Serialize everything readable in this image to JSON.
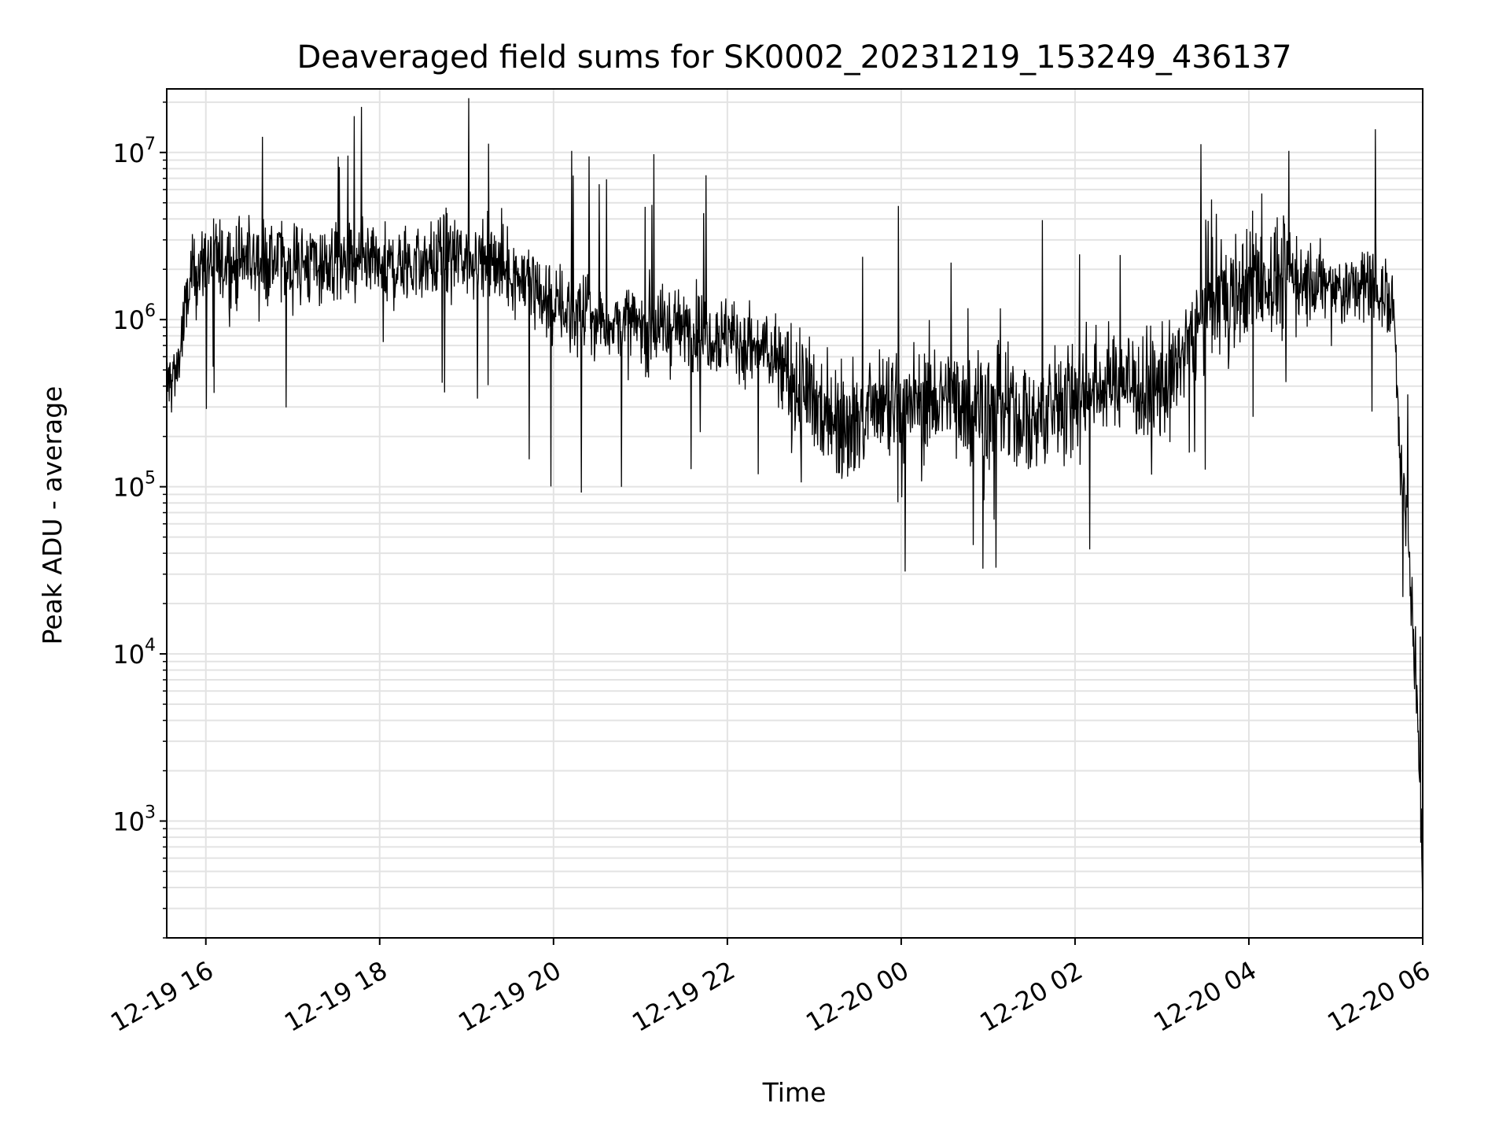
{
  "chart_data": {
    "type": "line",
    "title": "Deaveraged field sums for SK0002_20231219_153249_436137",
    "xlabel": "Time",
    "ylabel": "Peak ADU - average",
    "yscale": "log",
    "grid": true,
    "legend": "none",
    "line_color": "#000000",
    "grid_color": "#e3e3e3",
    "xlim": [
      "2023-12-19 15:33",
      "2023-12-20 06:00"
    ],
    "ylim": [
      200,
      24000000
    ],
    "x_ticks": [
      {
        "value": "2023-12-19 16:00",
        "label": "12-19 16"
      },
      {
        "value": "2023-12-19 18:00",
        "label": "12-19 18"
      },
      {
        "value": "2023-12-19 20:00",
        "label": "12-19 20"
      },
      {
        "value": "2023-12-19 22:00",
        "label": "12-19 22"
      },
      {
        "value": "2023-12-20 00:00",
        "label": "12-20 00"
      },
      {
        "value": "2023-12-20 02:00",
        "label": "12-20 02"
      },
      {
        "value": "2023-12-20 04:00",
        "label": "12-20 04"
      },
      {
        "value": "2023-12-20 06:00",
        "label": "12-20 06"
      }
    ],
    "y_ticks": [
      {
        "value": 1000,
        "base": "10",
        "exp": "3"
      },
      {
        "value": 10000,
        "base": "10",
        "exp": "4"
      },
      {
        "value": 100000,
        "base": "10",
        "exp": "5"
      },
      {
        "value": 1000000,
        "base": "10",
        "exp": "6"
      },
      {
        "value": 10000000,
        "base": "10",
        "exp": "7"
      }
    ],
    "series": [
      {
        "x": [
          "2023-12-19 15:33",
          "2023-12-19 15:40",
          "2023-12-19 15:50",
          "2023-12-19 16:00",
          "2023-12-19 16:30",
          "2023-12-19 17:00",
          "2023-12-19 17:30",
          "2023-12-19 18:00",
          "2023-12-19 18:30",
          "2023-12-19 19:00",
          "2023-12-19 19:30",
          "2023-12-19 20:00",
          "2023-12-19 20:30",
          "2023-12-19 21:00",
          "2023-12-19 21:30",
          "2023-12-19 22:00",
          "2023-12-19 22:30",
          "2023-12-19 23:00",
          "2023-12-19 23:30",
          "2023-12-20 00:00",
          "2023-12-20 00:30",
          "2023-12-20 01:00",
          "2023-12-20 01:30",
          "2023-12-20 02:00",
          "2023-12-20 02:30",
          "2023-12-20 03:00",
          "2023-12-20 03:30",
          "2023-12-20 04:00",
          "2023-12-20 04:30",
          "2023-12-20 05:00",
          "2023-12-20 05:30",
          "2023-12-20 05:40",
          "2023-12-20 05:45",
          "2023-12-20 05:50",
          "2023-12-20 05:55",
          "2023-12-20 06:00"
        ],
        "y": [
          400000,
          500000,
          1800000,
          2200000,
          2300000,
          2200000,
          2100000,
          2000000,
          2200000,
          2400000,
          2000000,
          1200000,
          1000000,
          900000,
          900000,
          800000,
          600000,
          300000,
          250000,
          300000,
          350000,
          300000,
          250000,
          350000,
          450000,
          350000,
          1200000,
          1600000,
          1800000,
          1500000,
          1600000,
          1200000,
          150000,
          40000,
          8000,
          600
        ]
      }
    ]
  }
}
